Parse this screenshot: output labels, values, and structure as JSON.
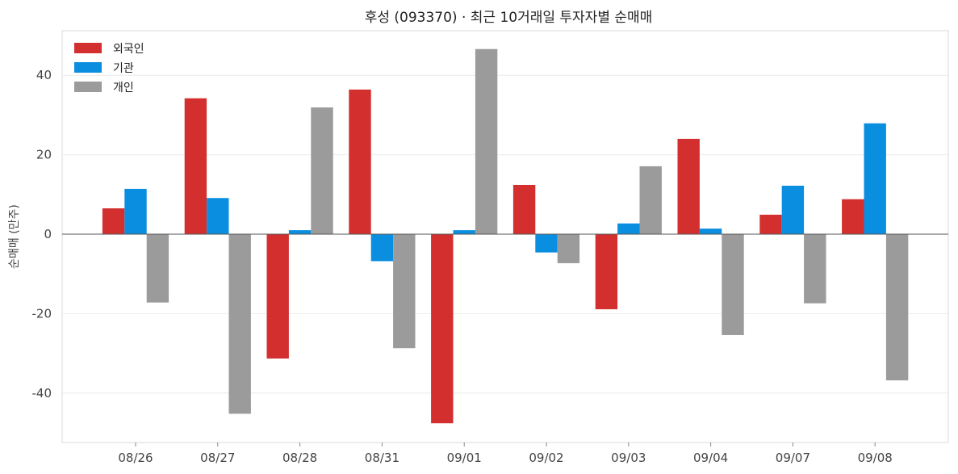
{
  "chart_data": {
    "type": "bar",
    "title": "후성 (093370) · 최근 10거래일 투자자별 순매매",
    "xlabel": "",
    "ylabel": "순매매 (만주)",
    "categories": [
      "08/26",
      "08/27",
      "08/28",
      "08/31",
      "09/01",
      "09/02",
      "09/03",
      "09/04",
      "09/07",
      "09/08"
    ],
    "series": [
      {
        "name": "외국인",
        "color": "#d32f2f",
        "values": [
          6.5,
          34.2,
          -31.3,
          36.4,
          -47.6,
          12.4,
          -18.9,
          24.0,
          4.9,
          8.8
        ]
      },
      {
        "name": "기관",
        "color": "#0a8fe0",
        "values": [
          11.4,
          9.1,
          1.0,
          -6.8,
          1.0,
          -4.6,
          2.7,
          1.4,
          12.2,
          27.9
        ]
      },
      {
        "name": "개인",
        "color": "#9b9b9b",
        "values": [
          -17.2,
          -45.2,
          31.9,
          -28.7,
          46.6,
          -7.3,
          17.1,
          -25.4,
          -17.4,
          -36.8
        ]
      }
    ],
    "yticks": [
      -40,
      -20,
      0,
      20,
      40
    ],
    "ylim": [
      -52,
      52
    ],
    "grid": true,
    "legend": "top-left"
  }
}
